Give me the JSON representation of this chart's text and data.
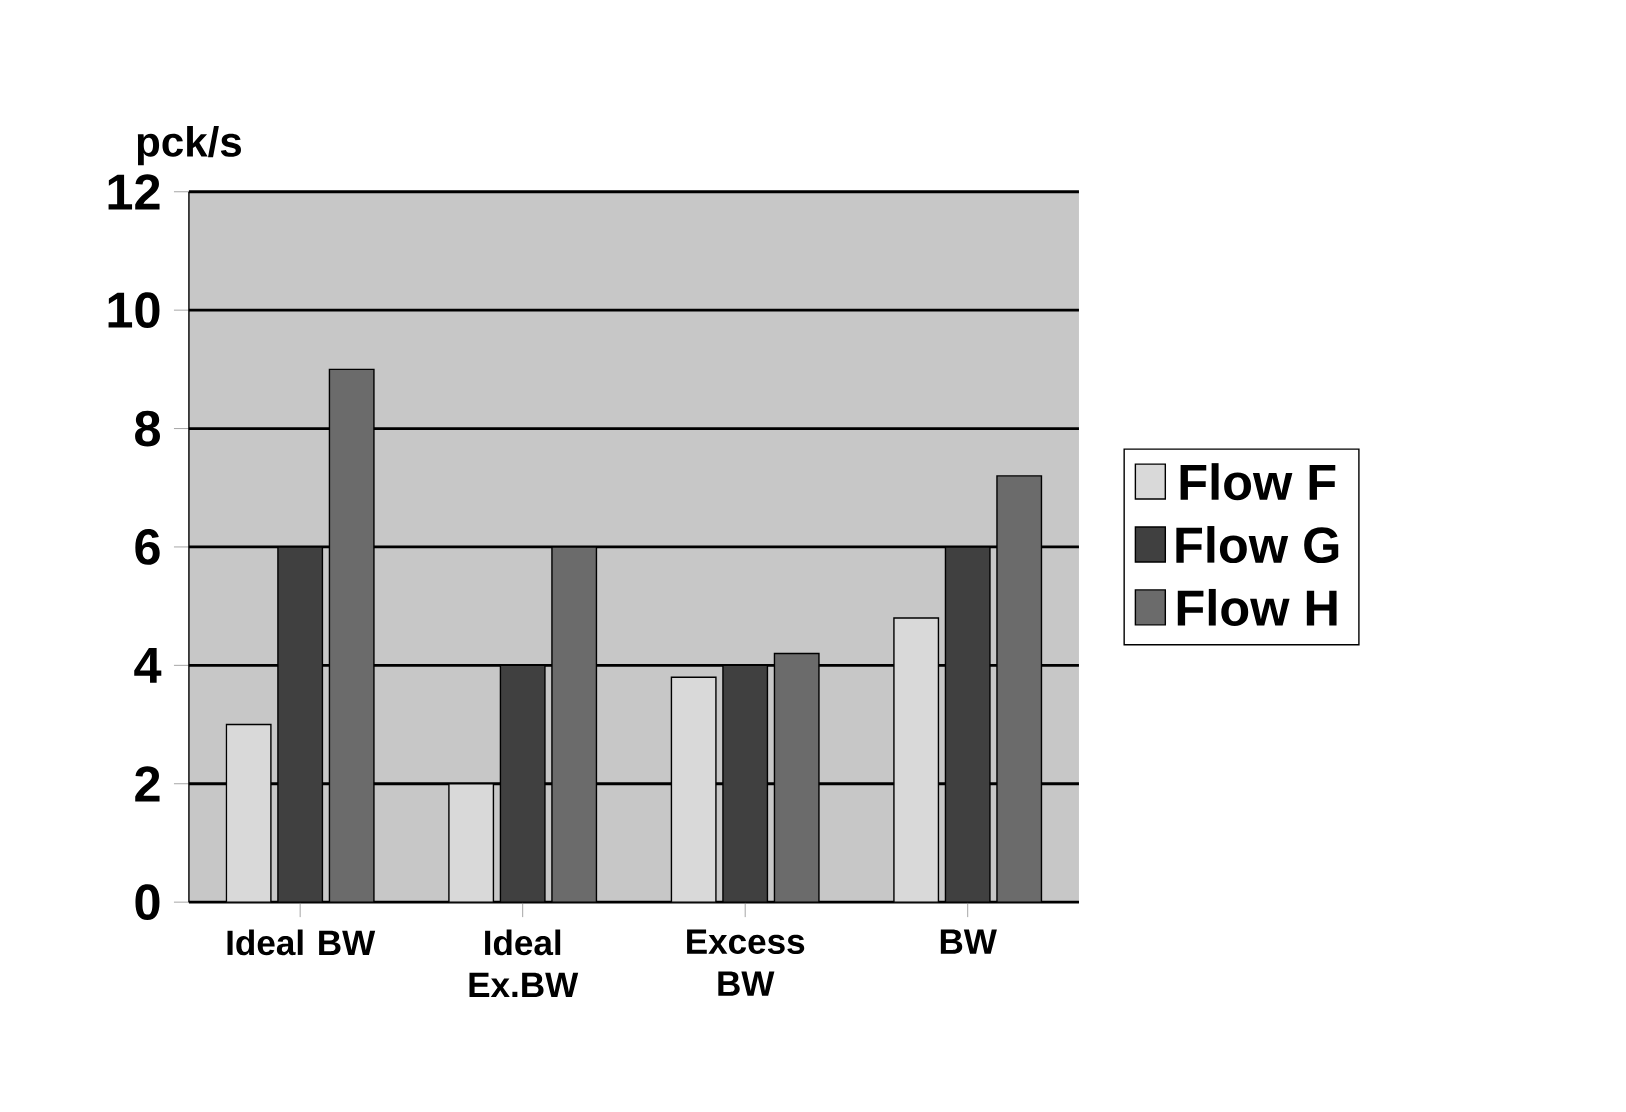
{
  "chart_data": {
    "type": "bar",
    "ylabel": "pck/s",
    "categories": [
      "Ideal BW",
      "Ideal Ex.BW",
      "Excess BW",
      "BW"
    ],
    "series": [
      {
        "name": "Flow F",
        "color": "#d9d9d9",
        "values": [
          3,
          2,
          3.8,
          4.8
        ]
      },
      {
        "name": "Flow G",
        "color": "#404040",
        "values": [
          6,
          4,
          4,
          6
        ]
      },
      {
        "name": "Flow H",
        "color": "#6b6b6b",
        "values": [
          9,
          6,
          4.2,
          7.2
        ]
      }
    ],
    "ylim": [
      0,
      12
    ],
    "yticks": [
      0,
      2,
      4,
      6,
      8,
      10,
      12
    ],
    "grid": "y",
    "legend": "right"
  }
}
